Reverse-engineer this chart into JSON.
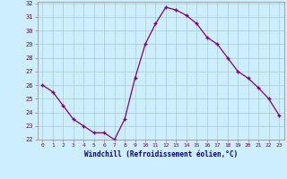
{
  "x": [
    0,
    1,
    2,
    3,
    4,
    5,
    6,
    7,
    8,
    9,
    10,
    11,
    12,
    13,
    14,
    15,
    16,
    17,
    18,
    19,
    20,
    21,
    22,
    23
  ],
  "y": [
    26.0,
    25.5,
    24.5,
    23.5,
    23.0,
    22.5,
    22.5,
    22.0,
    23.5,
    26.5,
    29.0,
    30.5,
    31.7,
    31.5,
    31.1,
    30.5,
    29.5,
    29.0,
    28.0,
    27.0,
    26.5,
    25.8,
    25.0,
    23.8
  ],
  "xlabel": "Windchill (Refroidissement éolien,°C)",
  "ylim": [
    22,
    32
  ],
  "xlim": [
    -0.5,
    23.5
  ],
  "yticks": [
    22,
    23,
    24,
    25,
    26,
    27,
    28,
    29,
    30,
    31,
    32
  ],
  "xticks": [
    0,
    1,
    2,
    3,
    4,
    5,
    6,
    7,
    8,
    9,
    10,
    11,
    12,
    13,
    14,
    15,
    16,
    17,
    18,
    19,
    20,
    21,
    22,
    23
  ],
  "line_color": "#800080",
  "marker": "+",
  "bg_color": "#cceeff",
  "grid_color": "#aacccc"
}
